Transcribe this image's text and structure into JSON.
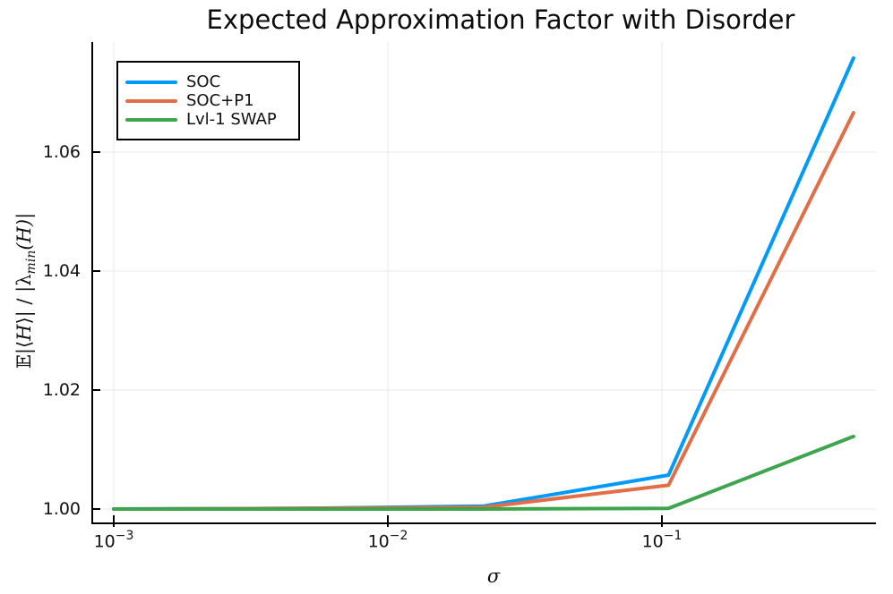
{
  "title": "Expected Approximation Factor with Disorder",
  "axes": {
    "x_label": "σ",
    "y_label_parts": {
      "bb_e": "𝔼",
      "p1": "|⟨",
      "h1": "H",
      "p2": "⟩| / |λ",
      "sub": "min",
      "p3": "(",
      "h2": "H",
      "p4": ")|"
    },
    "x_ticks": [
      {
        "base": "10",
        "exp": "−3"
      },
      {
        "base": "10",
        "exp": "−2"
      },
      {
        "base": "10",
        "exp": "−1"
      }
    ],
    "y_ticks": [
      "1.00",
      "1.02",
      "1.04",
      "1.06"
    ]
  },
  "legend": {
    "items": [
      {
        "label": "SOC",
        "color": "#009afa"
      },
      {
        "label": "SOC+P1",
        "color": "#e26e47"
      },
      {
        "label": "Lvl-1 SWAP",
        "color": "#3ea44e"
      }
    ]
  },
  "colors": {
    "axis": "#000000",
    "grid": "#e8e8e8",
    "background": "#ffffff",
    "text": "#111111"
  },
  "chart_data": {
    "type": "line",
    "title": "Expected Approximation Factor with Disorder",
    "xlabel": "σ",
    "ylabel": "E|⟨H⟩| / |λ_min(H)|",
    "x_scale": "log10",
    "x": [
      0.001,
      0.00473,
      0.02236,
      0.10574,
      0.5
    ],
    "series": [
      {
        "name": "SOC",
        "color": "#009afa",
        "values": [
          1.0,
          1.0001,
          1.0005,
          1.0057,
          1.0758
        ]
      },
      {
        "name": "SOC+P1",
        "color": "#e26e47",
        "values": [
          1.0,
          1.0001,
          1.0003,
          1.004,
          1.0666
        ]
      },
      {
        "name": "Lvl-1 SWAP",
        "color": "#3ea44e",
        "values": [
          1.0,
          1.0,
          1.0,
          1.0001,
          1.0122
        ]
      }
    ],
    "xlim": [
      0.000835,
      0.604
    ],
    "ylim": [
      0.9977,
      1.0785
    ],
    "grid": true,
    "legend_position": "top-left",
    "x_gridlines_log10": [
      -3,
      -2,
      -1
    ],
    "y_gridlines": [
      1.0,
      1.02,
      1.04,
      1.06
    ]
  }
}
